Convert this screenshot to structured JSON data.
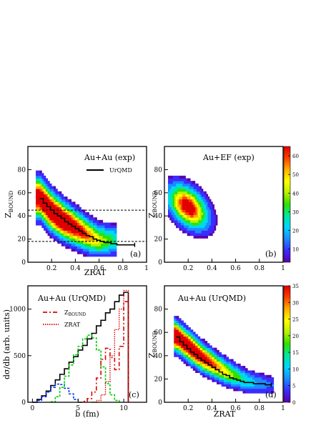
{
  "colors": {
    "frame": "#000000",
    "red": "#e00000",
    "green": "#00cc00",
    "blue": "#0033ff",
    "palette": [
      "#5a00a8",
      "#3b2cff",
      "#1a8cff",
      "#00d5ff",
      "#00e8a0",
      "#30e000",
      "#b8f000",
      "#ffff00",
      "#ffb000",
      "#ff4000",
      "#e00000"
    ]
  },
  "chart_data": [
    {
      "id": "a",
      "type": "heatmap",
      "panel_label": "(a)",
      "annotation": "Au+Au  (exp)",
      "legend": [
        "UrQMD"
      ],
      "xlabel": "ZRAT",
      "ylabel_main": "Z",
      "ylabel_sub": "BOUND",
      "xlim": [
        0,
        1
      ],
      "ylim": [
        0,
        100
      ],
      "xticks": [
        "0.2",
        "0.4",
        "0.6",
        "0.8",
        "1"
      ],
      "yticks": [
        "0",
        "20",
        "40",
        "60",
        "80"
      ],
      "xtick_values": [
        0.2,
        0.4,
        0.6,
        0.8,
        1.0
      ],
      "ytick_values": [
        0,
        20,
        40,
        60,
        80
      ],
      "dashed_lines_y": [
        45,
        18
      ],
      "ridge": [
        [
          0.1,
          56
        ],
        [
          0.2,
          44
        ],
        [
          0.3,
          36
        ],
        [
          0.4,
          30
        ],
        [
          0.5,
          24
        ],
        [
          0.6,
          19
        ]
      ],
      "band_width": 9,
      "curve": {
        "x": [
          0.1,
          0.13,
          0.16,
          0.19,
          0.22,
          0.25,
          0.28,
          0.31,
          0.34,
          0.37,
          0.4,
          0.43,
          0.46,
          0.49,
          0.52,
          0.55,
          0.58,
          0.61,
          0.64,
          0.67,
          0.7,
          0.75,
          0.8,
          0.85,
          0.9
        ],
        "y": [
          55,
          51,
          48,
          45,
          42,
          40,
          38,
          35,
          33,
          31,
          29,
          27,
          25,
          23,
          22,
          20,
          19,
          18,
          17,
          17,
          16,
          15,
          15,
          15,
          15
        ]
      }
    },
    {
      "id": "b",
      "type": "heatmap",
      "panel_label": "(b)",
      "annotation": "Au+EF  (exp)",
      "xlabel": "",
      "ylabel_main": "Z",
      "ylabel_sub": "BOUND",
      "xlim": [
        0,
        1
      ],
      "ylim": [
        0,
        100
      ],
      "xticks": [
        "0.2",
        "0.4",
        "0.6",
        "0.8",
        "1"
      ],
      "yticks": [
        "0",
        "20",
        "40",
        "60",
        "80"
      ],
      "xtick_values": [
        0.2,
        0.4,
        0.6,
        0.8,
        1.0
      ],
      "ytick_values": [
        0,
        20,
        40,
        60,
        80
      ],
      "blob": {
        "center": [
          0.2,
          48
        ],
        "sx": 0.12,
        "sy": 22
      },
      "colorbar": {
        "ticks": [
          "10",
          "20",
          "30",
          "40",
          "50",
          "60"
        ],
        "tick_values": [
          10,
          20,
          30,
          40,
          50,
          60
        ],
        "range": [
          3,
          65
        ]
      }
    },
    {
      "id": "c",
      "type": "line",
      "panel_label": "(c)",
      "annotation": "Au+Au (UrQMD)",
      "legend": [
        {
          "main": "Z",
          "sub": "BOUND",
          "color": "#e00000",
          "dash": "6,3,2,3"
        },
        {
          "main": "ZRAT",
          "sub": "",
          "color": "#e00000",
          "dash": "1.5,1.5"
        }
      ],
      "xlabel": "b (fm)",
      "ylabel": "dσ/db (arb. units)",
      "xlim": [
        -0.5,
        12.5
      ],
      "ylim": [
        0,
        1250
      ],
      "xticks": [
        "0",
        "5",
        "10"
      ],
      "yticks": [
        "0",
        "500",
        "1000"
      ],
      "xtick_values": [
        0,
        5,
        10
      ],
      "ytick_values": [
        0,
        500,
        1000
      ],
      "series": [
        {
          "color": "#000000",
          "x": [
            0.0,
            0.5,
            1.0,
            1.5,
            2.0,
            2.5,
            3.0,
            3.5,
            4.0,
            4.5,
            5.0,
            5.5,
            6.0,
            6.5,
            7.0,
            7.5,
            8.0,
            8.5,
            9.0,
            9.5,
            10.0,
            10.5
          ],
          "y": [
            0,
            30,
            70,
            120,
            180,
            240,
            300,
            360,
            430,
            490,
            560,
            610,
            680,
            740,
            820,
            880,
            960,
            1000,
            1080,
            1150,
            1180,
            0
          ]
        },
        {
          "color": "#0033ff",
          "x": [
            0.0,
            0.5,
            1.0,
            1.5,
            2.0,
            2.5,
            3.0,
            3.5,
            4.0,
            4.5,
            5.0
          ],
          "y": [
            0,
            20,
            60,
            110,
            160,
            195,
            190,
            150,
            90,
            30,
            5
          ]
        },
        {
          "color": "#00cc00",
          "x": [
            2.0,
            2.5,
            3.0,
            3.5,
            4.0,
            4.5,
            5.0,
            5.5,
            6.0,
            6.5,
            7.0,
            7.5,
            8.0,
            8.5,
            9.0,
            9.5
          ],
          "y": [
            5,
            60,
            160,
            280,
            400,
            510,
            600,
            680,
            720,
            690,
            560,
            380,
            200,
            80,
            20,
            0
          ]
        },
        {
          "color": "#e00000",
          "x": [
            5.0,
            5.5,
            6.0,
            6.5,
            7.0,
            7.5,
            8.0,
            8.5,
            9.0,
            9.5,
            10.0,
            10.5
          ],
          "y": [
            0,
            10,
            40,
            110,
            260,
            460,
            580,
            480,
            350,
            600,
            1080,
            0
          ]
        },
        {
          "color": "#e00000",
          "x": [
            6.5,
            7.0,
            7.5,
            8.0,
            8.5,
            9.0,
            9.5,
            10.0,
            10.5
          ],
          "y": [
            0,
            20,
            80,
            220,
            500,
            780,
            1000,
            1200,
            0
          ]
        }
      ]
    },
    {
      "id": "d",
      "type": "heatmap",
      "panel_label": "(d)",
      "annotation": "Au+Au (UrQMD)",
      "xlabel": "ZRAT",
      "ylabel_main": "Z",
      "ylabel_sub": "BOUND",
      "xlim": [
        0,
        1
      ],
      "ylim": [
        0,
        100
      ],
      "xticks": [
        "0.2",
        "0.4",
        "0.6",
        "0.8",
        "1"
      ],
      "yticks": [
        "0",
        "20",
        "40",
        "60",
        "80"
      ],
      "xtick_values": [
        0.2,
        0.4,
        0.6,
        0.8,
        1.0
      ],
      "ytick_values": [
        0,
        20,
        40,
        60,
        80
      ],
      "ridge": [
        [
          0.1,
          57
        ],
        [
          0.3,
          40
        ],
        [
          0.5,
          27
        ],
        [
          0.7,
          18
        ],
        [
          0.9,
          15
        ]
      ],
      "band_width": 7,
      "curve": {
        "x": [
          0.1,
          0.13,
          0.16,
          0.19,
          0.22,
          0.25,
          0.28,
          0.31,
          0.34,
          0.37,
          0.4,
          0.43,
          0.46,
          0.49,
          0.52,
          0.55,
          0.58,
          0.61,
          0.64,
          0.67,
          0.7,
          0.75,
          0.8,
          0.85,
          0.9
        ],
        "y": [
          56,
          52,
          49,
          46,
          43,
          41,
          38,
          36,
          34,
          32,
          30,
          28,
          26,
          24,
          23,
          21,
          20,
          19,
          18,
          17,
          17,
          16,
          16,
          15,
          15
        ]
      },
      "colorbar": {
        "ticks": [
          "0",
          "5",
          "10",
          "15",
          "20",
          "25",
          "30",
          "35"
        ],
        "tick_values": [
          0,
          5,
          10,
          15,
          20,
          25,
          30,
          35
        ],
        "range": [
          0,
          35
        ]
      }
    }
  ]
}
